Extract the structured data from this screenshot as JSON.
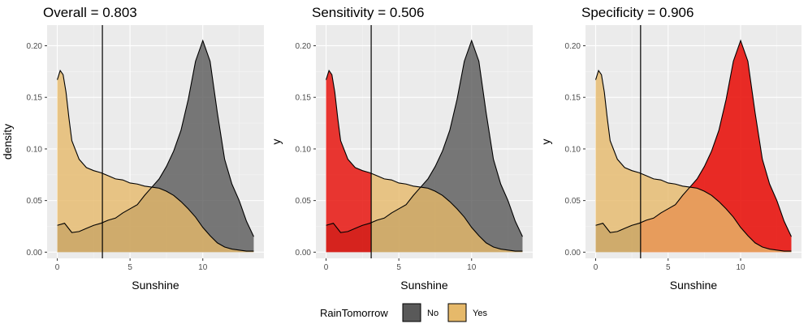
{
  "chart_data": [
    {
      "type": "area",
      "title": "Overall = 0.803",
      "xlabel": "Sunshine",
      "ylabel": "density",
      "xlim": [
        -0.7,
        14.2
      ],
      "ylim": [
        -0.006,
        0.22
      ],
      "x_ticks": [
        "0",
        "5",
        "10"
      ],
      "y_ticks": [
        "0.00",
        "0.05",
        "0.10",
        "0.15",
        "0.20"
      ],
      "threshold": 3.1,
      "grid": true,
      "highlight": "none"
    },
    {
      "type": "area",
      "title": "Sensitivity = 0.506",
      "xlabel": "Sunshine",
      "ylabel": "y",
      "xlim": [
        -0.7,
        14.2
      ],
      "ylim": [
        -0.006,
        0.22
      ],
      "x_ticks": [
        "0",
        "5",
        "10"
      ],
      "y_ticks": [
        "0.00",
        "0.05",
        "0.10",
        "0.15",
        "0.20"
      ],
      "threshold": 3.1,
      "grid": true,
      "highlight": "Yes below threshold"
    },
    {
      "type": "area",
      "title": "Specificity = 0.906",
      "xlabel": "Sunshine",
      "ylabel": "y",
      "xlim": [
        -0.7,
        14.2
      ],
      "ylim": [
        -0.006,
        0.22
      ],
      "x_ticks": [
        "0",
        "5",
        "10"
      ],
      "y_ticks": [
        "0.00",
        "0.05",
        "0.10",
        "0.15",
        "0.20"
      ],
      "threshold": 3.1,
      "grid": true,
      "highlight": "No above threshold"
    }
  ],
  "series": [
    {
      "name": "No",
      "color": "#595959",
      "x": [
        0,
        0.5,
        1,
        1.5,
        2,
        2.5,
        3,
        3.5,
        4,
        4.5,
        5,
        5.5,
        6,
        6.5,
        7,
        7.5,
        8,
        8.5,
        9,
        9.5,
        10,
        10.5,
        11,
        11.5,
        12,
        12.5,
        13,
        13.5
      ],
      "values": [
        0.026,
        0.028,
        0.019,
        0.02,
        0.023,
        0.026,
        0.028,
        0.031,
        0.033,
        0.038,
        0.042,
        0.046,
        0.055,
        0.063,
        0.071,
        0.083,
        0.098,
        0.118,
        0.148,
        0.185,
        0.205,
        0.185,
        0.135,
        0.09,
        0.066,
        0.05,
        0.03,
        0.015
      ]
    },
    {
      "name": "Yes",
      "color": "#e6b96a",
      "x": [
        0,
        0.2,
        0.4,
        0.6,
        0.8,
        1,
        1.5,
        2,
        2.5,
        3,
        3.5,
        4,
        4.5,
        5,
        5.5,
        6,
        6.5,
        7,
        7.5,
        8,
        8.5,
        9,
        9.5,
        10,
        10.5,
        11,
        11.5,
        12,
        12.5,
        13,
        13.5
      ],
      "values": [
        0.167,
        0.176,
        0.172,
        0.155,
        0.13,
        0.108,
        0.09,
        0.082,
        0.079,
        0.077,
        0.074,
        0.071,
        0.07,
        0.067,
        0.066,
        0.064,
        0.063,
        0.062,
        0.059,
        0.055,
        0.049,
        0.042,
        0.034,
        0.024,
        0.016,
        0.009,
        0.005,
        0.003,
        0.002,
        0.001,
        0.001
      ]
    }
  ],
  "highlight_color": "#e8150f",
  "legend": {
    "title": "RainTomorrow",
    "items": [
      {
        "label": "No",
        "color": "#595959"
      },
      {
        "label": "Yes",
        "color": "#e6b96a"
      }
    ],
    "placement": "bottom"
  }
}
